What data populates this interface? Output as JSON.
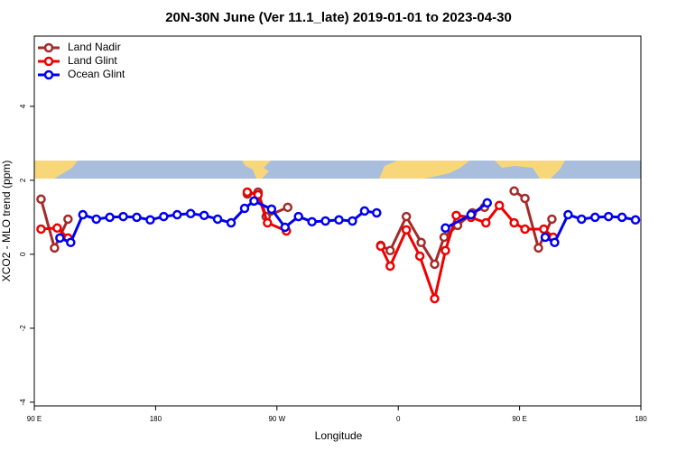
{
  "chart_data": {
    "type": "line",
    "title": "20N-30N June (Ver 11.1_late)   2019-01-01 to 2023-04-30",
    "xlabel": "Longitude",
    "ylabel": "XCO2 - MLO trend (ppm)",
    "xlim": [
      90,
      540
    ],
    "ylim": [
      -4.1,
      5.9
    ],
    "xticks": [
      {
        "value": 90,
        "label": "90 E"
      },
      180,
      {
        "value": 270,
        "label": "90 W"
      },
      {
        "value": 360,
        "label": "0"
      },
      {
        "value": 450,
        "label": "90 E"
      },
      {
        "value": 540,
        "label": "180"
      }
    ],
    "yticks": [
      -4,
      -2,
      0,
      2,
      4
    ],
    "legend": "top-left",
    "series": [
      {
        "name": "Land Nadir",
        "color": "#a52a2a",
        "x": [
          95,
          105,
          115,
          null,
          248,
          256,
          262,
          278,
          null,
          347,
          354,
          366,
          377,
          387,
          394,
          404,
          415,
          424,
          null,
          446,
          454,
          464,
          474
        ],
        "values": [
          1.49,
          0.17,
          0.95,
          null,
          1.63,
          1.68,
          1.02,
          1.27,
          null,
          0.24,
          0.1,
          1.02,
          0.32,
          -0.27,
          0.46,
          0.78,
          1.12,
          1.27,
          null,
          1.71,
          1.51,
          0.17,
          0.95
        ]
      },
      {
        "name": "Land Glint",
        "color": "#ee0000",
        "x": [
          95,
          107,
          115,
          null,
          248,
          256,
          263,
          277,
          null,
          347,
          354,
          366,
          376,
          387,
          395,
          403,
          414,
          425,
          435,
          446,
          454,
          468,
          475
        ],
        "values": [
          0.68,
          0.71,
          0.44,
          null,
          1.68,
          1.61,
          0.85,
          0.63,
          null,
          0.22,
          -0.32,
          0.66,
          -0.05,
          -1.2,
          0.1,
          1.05,
          1.0,
          0.85,
          1.32,
          0.85,
          0.68,
          0.68,
          0.46
        ]
      },
      {
        "name": "Ocean Glint",
        "color": "#0000ee",
        "x": [
          109,
          117,
          126,
          136,
          146,
          156,
          166,
          176,
          186,
          196,
          206,
          216,
          226,
          236,
          246,
          253,
          266,
          276,
          286,
          296,
          306,
          316,
          326,
          335,
          344,
          null,
          395,
          414,
          426,
          null,
          469,
          476,
          486,
          496,
          506,
          516,
          526,
          536
        ],
        "values": [
          0.44,
          0.32,
          1.07,
          0.95,
          1.0,
          1.02,
          1.0,
          0.93,
          1.02,
          1.07,
          1.1,
          1.05,
          0.95,
          0.85,
          1.24,
          1.44,
          1.22,
          0.73,
          1.02,
          0.88,
          0.9,
          0.93,
          0.9,
          1.17,
          1.12,
          null,
          0.71,
          1.07,
          1.39,
          null,
          0.46,
          0.32,
          1.07,
          0.95,
          1.0,
          1.02,
          1.0,
          0.93
        ]
      }
    ]
  }
}
